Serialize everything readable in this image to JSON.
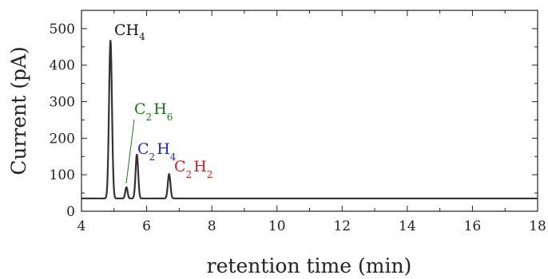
{
  "chart_data": {
    "type": "line",
    "title": "",
    "xlabel": "retention time (min)",
    "ylabel": "Current (pA)",
    "xlim": [
      4,
      18
    ],
    "ylim": [
      0,
      550
    ],
    "x_ticks": [
      "4",
      "6",
      "8",
      "10",
      "12",
      "14",
      "16",
      "18"
    ],
    "y_ticks": [
      "0",
      "100",
      "200",
      "300",
      "400",
      "500"
    ],
    "grid": false,
    "baseline": 35,
    "peaks": [
      {
        "time": 4.89,
        "height": 467,
        "width": 0.045
      },
      {
        "time": 5.38,
        "height": 66,
        "width": 0.035
      },
      {
        "time": 5.7,
        "height": 155,
        "width": 0.04
      },
      {
        "time": 6.69,
        "height": 102,
        "width": 0.04
      }
    ],
    "line_color": "#333333",
    "annotations": [
      {
        "base": "CH",
        "sub": "4",
        "color": "#111111"
      },
      {
        "base1": "C",
        "sub1": "2",
        "base2": "H",
        "sub2": "6",
        "color": "#1a7a1a"
      },
      {
        "base1": "C",
        "sub1": "2",
        "base2": "H",
        "sub2": "4",
        "color": "#1f1fe0"
      },
      {
        "base1": "C",
        "sub1": "2",
        "base2": "H",
        "sub2": "2",
        "color": "#e02020"
      }
    ]
  }
}
